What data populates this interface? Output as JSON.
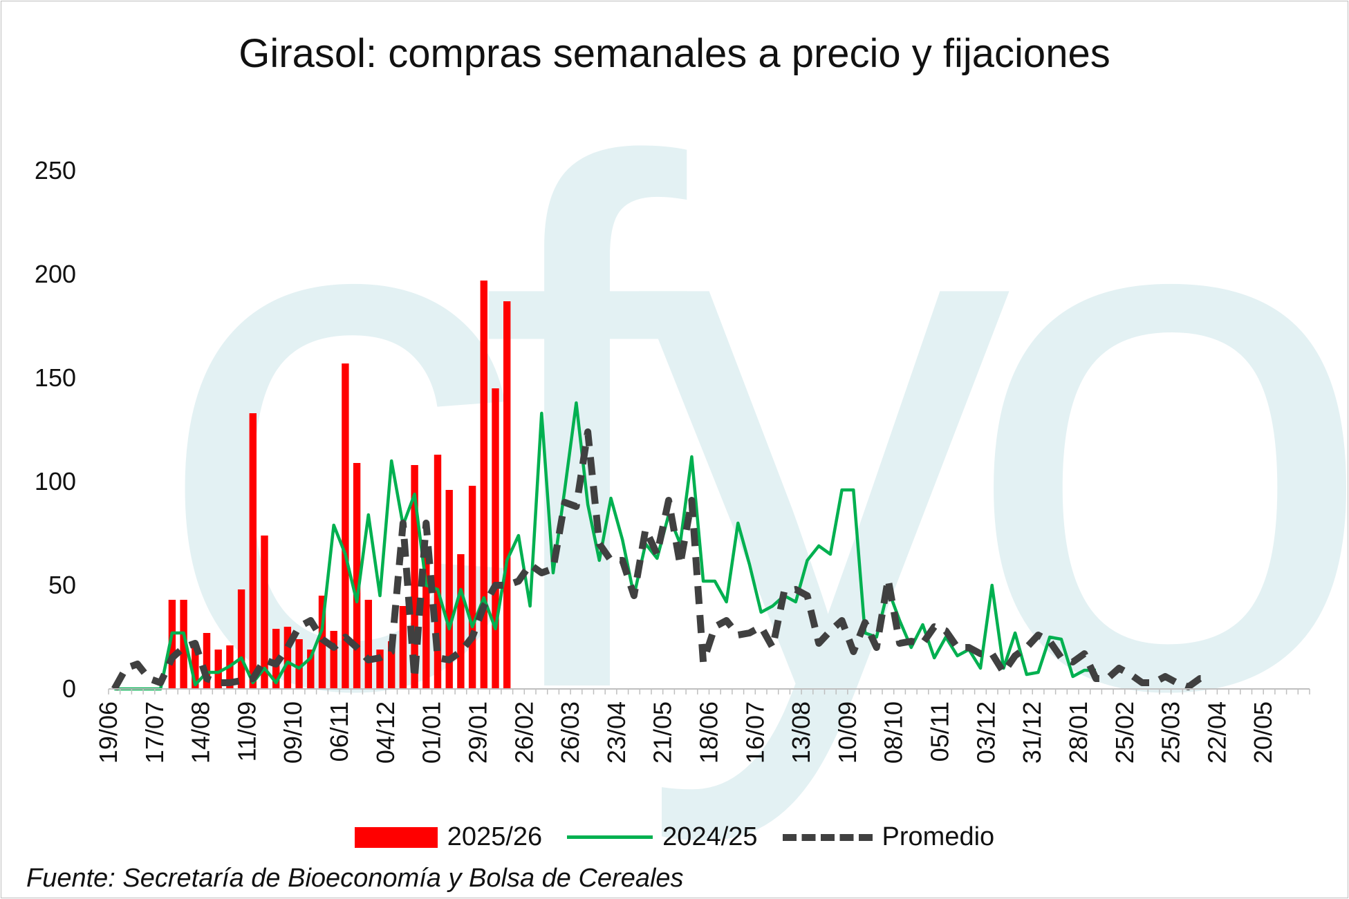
{
  "title": "Girasol: compras semanales a precio y fijaciones",
  "watermark": "cfyo",
  "source": "Fuente: Secretaría de Bioeconomía y Bolsa de Cereales",
  "legend": {
    "bar_label": "2025/26",
    "line_label": "2024/25",
    "avg_label": "Promedio"
  },
  "colors": {
    "bar": "#ff0000",
    "line": "#00b050",
    "avg": "#404040",
    "watermark": "#e3f1f3"
  },
  "chart_data": {
    "type": "bar",
    "title": "Girasol: compras semanales a precio y fijaciones",
    "xlabel": "",
    "ylabel": "",
    "ylim": [
      0,
      250
    ],
    "yticks": [
      0,
      50,
      100,
      150,
      200,
      250
    ],
    "grid": false,
    "legend_position": "bottom",
    "x_tick_labels": [
      "19/06",
      "17/07",
      "14/08",
      "11/09",
      "09/10",
      "06/11",
      "04/12",
      "01/01",
      "29/01",
      "26/02",
      "26/03",
      "23/04",
      "21/05",
      "18/06",
      "16/07",
      "13/08",
      "10/09",
      "08/10",
      "05/11",
      "03/12",
      "31/12",
      "28/01",
      "25/02",
      "25/03",
      "22/04",
      "20/05"
    ],
    "series": [
      {
        "name": "2025/26",
        "type": "bar",
        "values": [
          0,
          0,
          0,
          0,
          0,
          43,
          43,
          22,
          27,
          19,
          21,
          48,
          133,
          74,
          29,
          30,
          24,
          19,
          45,
          28,
          157,
          109,
          43,
          19,
          23,
          40,
          108,
          68,
          113,
          96,
          65,
          98,
          197,
          145,
          187
        ]
      },
      {
        "name": "2024/25",
        "type": "line",
        "values": [
          0,
          0,
          0,
          0,
          0,
          27,
          27,
          2,
          8,
          8,
          11,
          15,
          3,
          10,
          3,
          13,
          10,
          15,
          29,
          79,
          65,
          42,
          84,
          45,
          110,
          79,
          94,
          50,
          48,
          29,
          48,
          30,
          44,
          29,
          62,
          74,
          40,
          133,
          56,
          96,
          138,
          89,
          62,
          92,
          72,
          45,
          70,
          63,
          84,
          70,
          112,
          52,
          52,
          42,
          80,
          60,
          37,
          40,
          45,
          42,
          62,
          69,
          65,
          96,
          96,
          27,
          25,
          48,
          33,
          20,
          31,
          15,
          25,
          16,
          19,
          10,
          50,
          10,
          27,
          7,
          8,
          25,
          24,
          6,
          9,
          9
        ]
      },
      {
        "name": "Promedio",
        "type": "line",
        "values": [
          0,
          10,
          12,
          5,
          3,
          15,
          20,
          22,
          5,
          3,
          3,
          4,
          5,
          14,
          12,
          20,
          30,
          33,
          24,
          20,
          25,
          20,
          14,
          15,
          18,
          80,
          5,
          80,
          15,
          14,
          18,
          25,
          40,
          50,
          50,
          52,
          60,
          56,
          58,
          90,
          88,
          124,
          70,
          62,
          62,
          45,
          77,
          65,
          91,
          60,
          91,
          13,
          30,
          33,
          26,
          27,
          30,
          20,
          47,
          48,
          45,
          22,
          28,
          33,
          18,
          32,
          20,
          53,
          22,
          23,
          22,
          30,
          28,
          20,
          20,
          17,
          17,
          8,
          16,
          20,
          26,
          23,
          15,
          13,
          17,
          5,
          5,
          10,
          7,
          3,
          3,
          6,
          3,
          1,
          5,
          5
        ]
      }
    ]
  }
}
